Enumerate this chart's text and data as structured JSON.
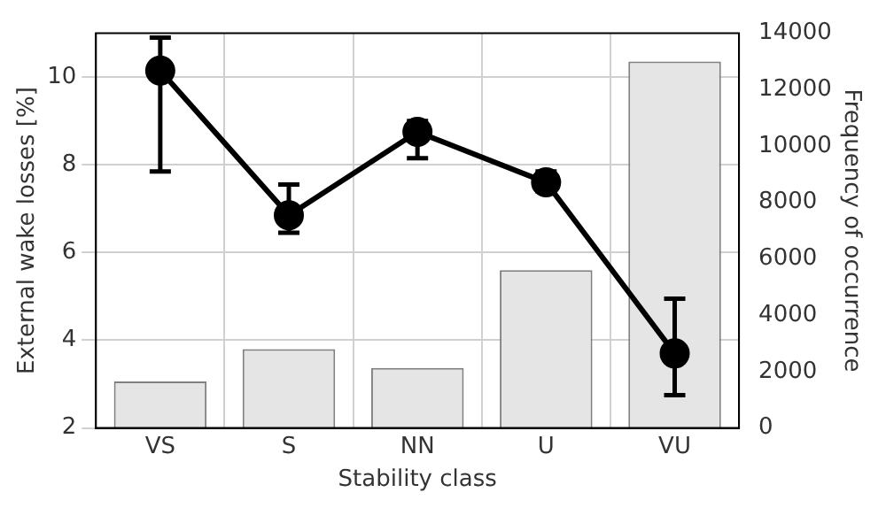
{
  "chart_data": {
    "type": "bar",
    "xlabel": "Stability class",
    "ylabel": "External wake losses [%]",
    "y2label": "Frequency of occurrence",
    "categories": [
      "VS",
      "S",
      "NN",
      "U",
      "VU"
    ],
    "series": [
      {
        "axis": "y2",
        "color": "#e5e5e5",
        "values": [
          1650,
          2800,
          2130,
          5600,
          13000
        ]
      },
      {
        "type": "line",
        "color": "#000000",
        "values": [
          10.15,
          6.85,
          8.75,
          7.6,
          3.7
        ],
        "errors": [
          [
            7.85,
            10.9
          ],
          [
            6.45,
            7.55
          ],
          [
            8.15,
            9.0
          ],
          [
            7.4,
            7.85
          ],
          [
            2.75,
            4.95
          ]
        ]
      }
    ],
    "ylim": [
      2,
      11
    ],
    "yticks": [
      2,
      4,
      6,
      8,
      10
    ],
    "y2lim": [
      0,
      14000
    ],
    "y2ticks": [
      0,
      2000,
      4000,
      6000,
      8000,
      10000,
      12000,
      14000
    ],
    "grid": true,
    "legend": false,
    "marker": "circle",
    "line_style": "solid"
  }
}
